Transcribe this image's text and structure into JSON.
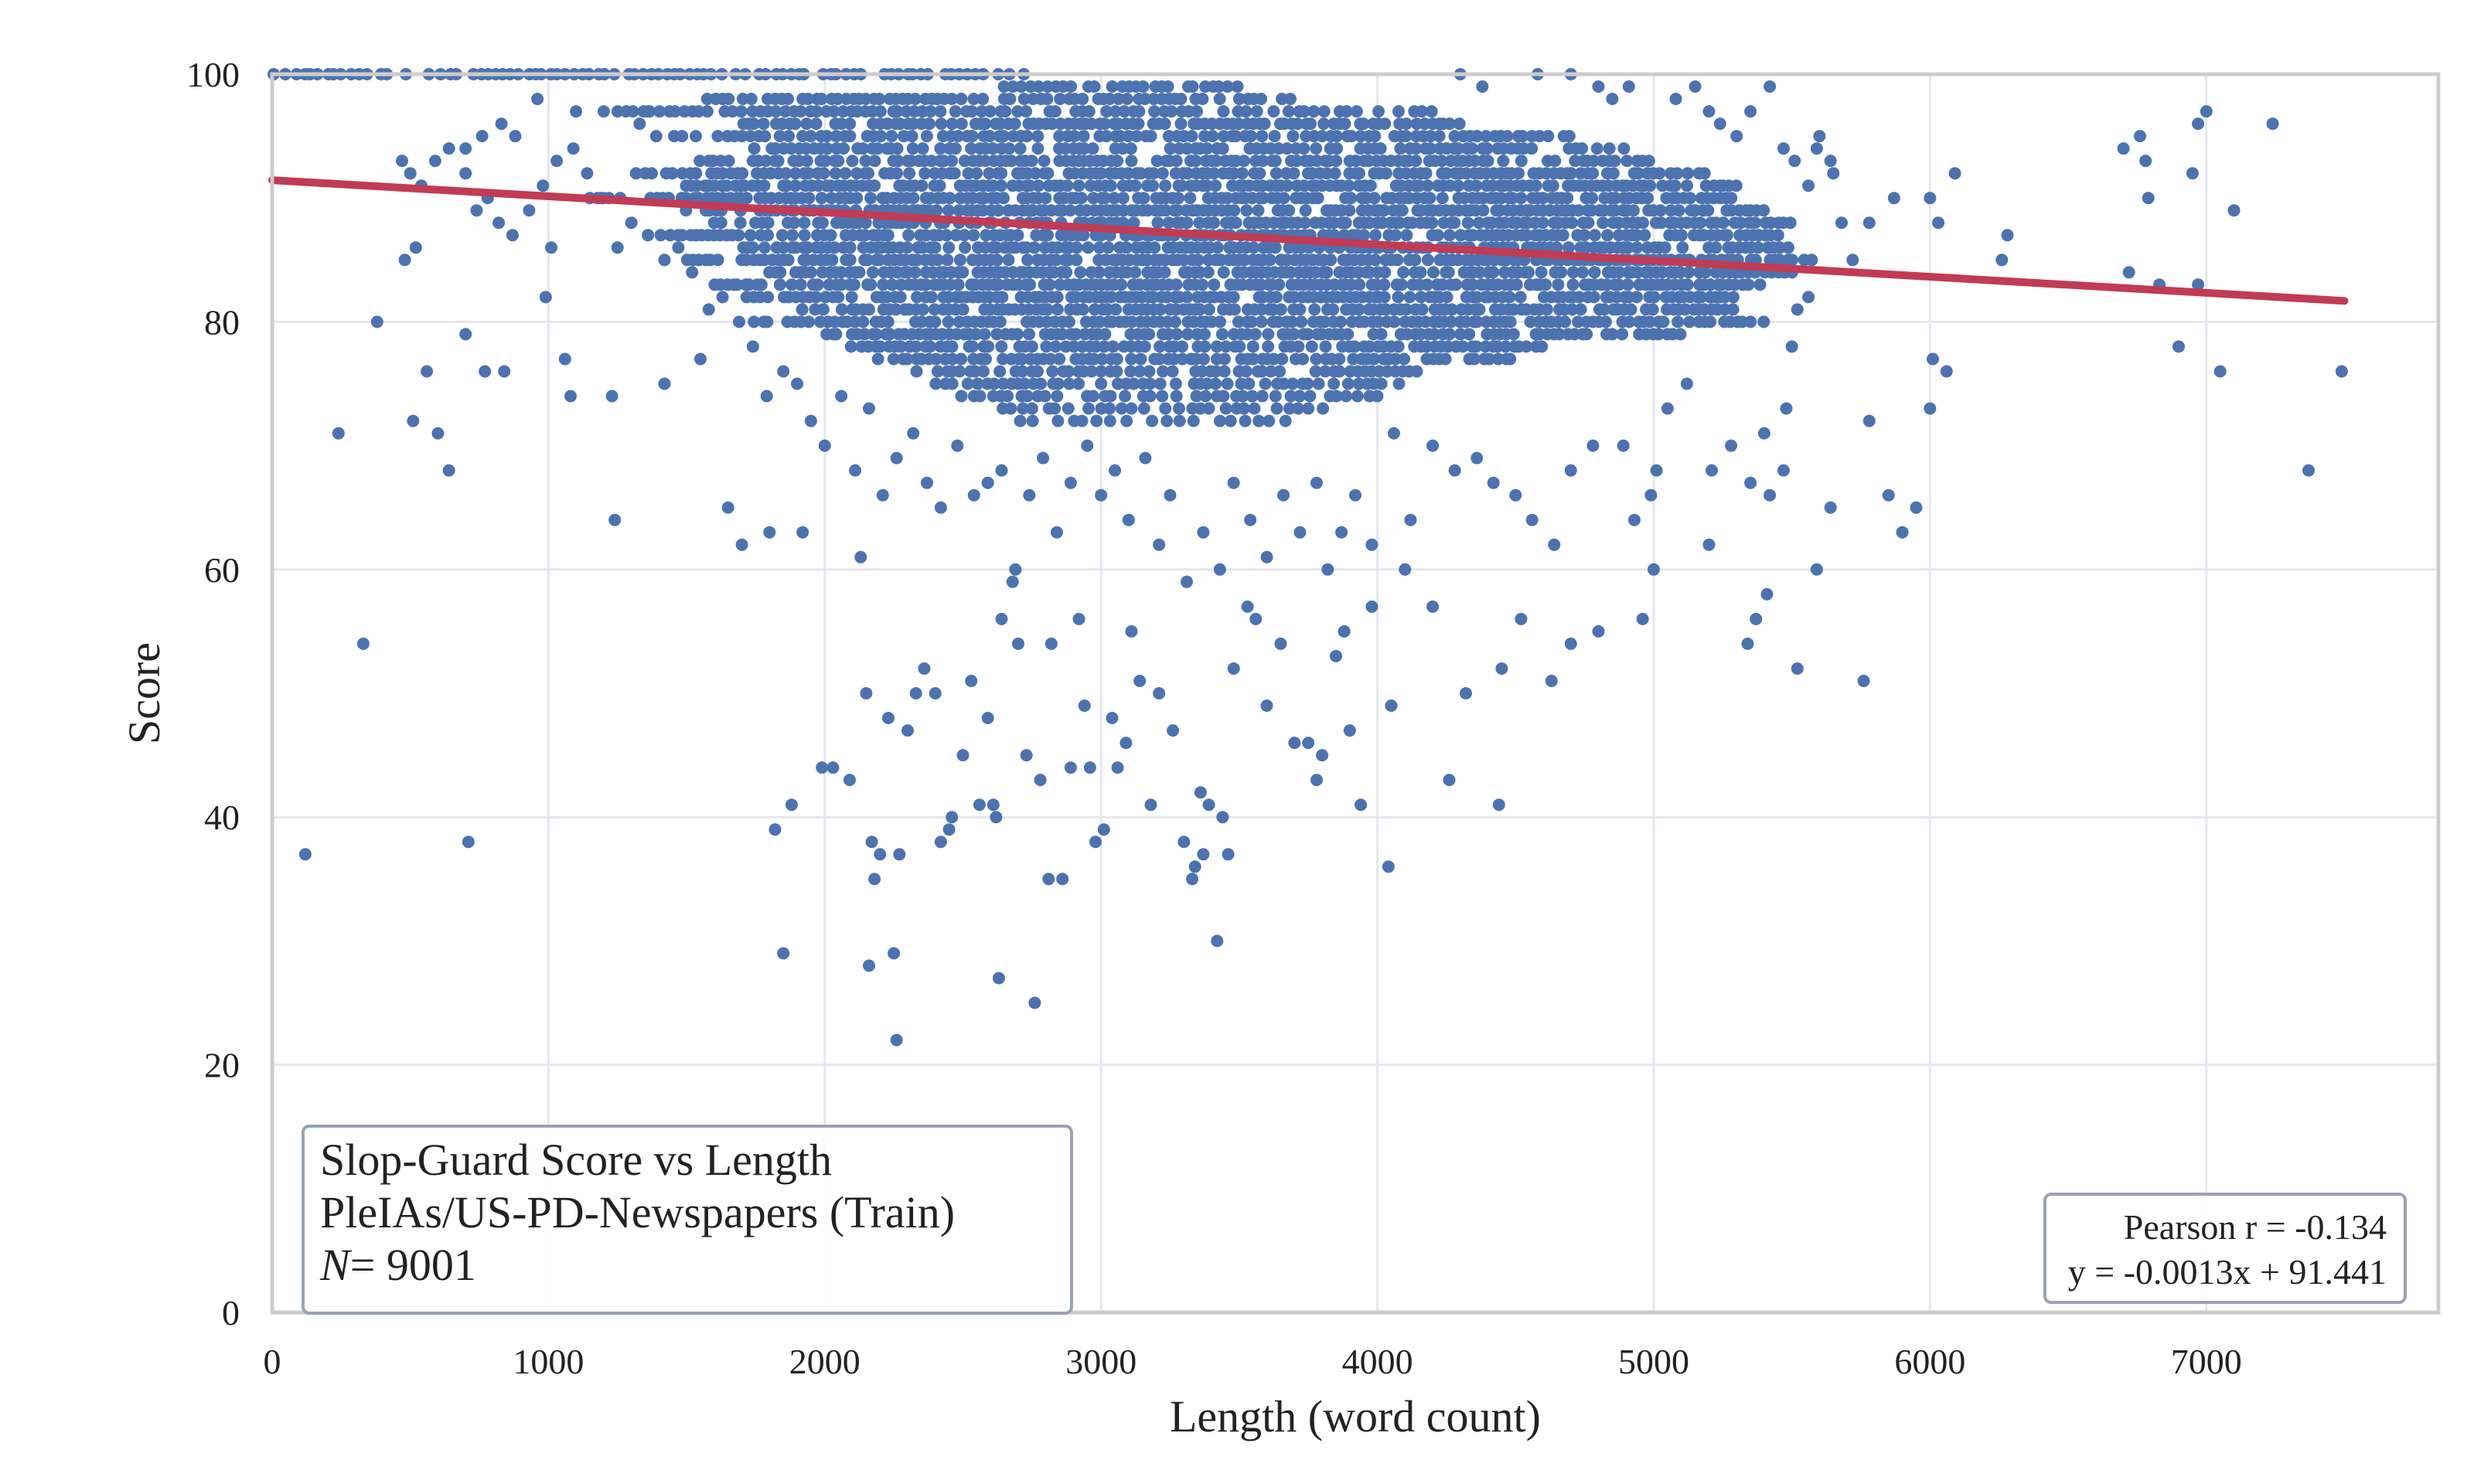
{
  "chart_data": {
    "type": "scatter",
    "title": "Slop-Guard Score vs Length",
    "subtitle": "PleIAs/US-PD-Newspapers (Train)",
    "n_label_var": "N",
    "n_label_value": "= 9001",
    "n": 9001,
    "xlabel": "Length (word count)",
    "ylabel": "Score",
    "xlim": [
      0,
      7840
    ],
    "ylim": [
      0,
      100
    ],
    "xticks": [
      0,
      1000,
      2000,
      3000,
      4000,
      5000,
      6000,
      7000
    ],
    "yticks": [
      0,
      20,
      40,
      60,
      80,
      100
    ],
    "grid": true,
    "colors": {
      "points": "#4c72b0",
      "regression": "#c23b54",
      "grid": "#e5e7ee",
      "spine": "#cccccc",
      "legend_border": "#9aa3b2"
    },
    "regression": {
      "slope": -0.0013,
      "intercept": 91.441,
      "x_start": 0,
      "x_end": 7500
    },
    "stats": {
      "pearson_label": "Pearson r = -0.134",
      "equation_label": "y = -0.0013x + 91.441",
      "pearson_r": -0.134
    },
    "density_bands": [
      {
        "y": 100,
        "x0": 0,
        "x1": 2750,
        "step": 28
      },
      {
        "y": 99,
        "x0": 2650,
        "x1": 3500,
        "step": 30
      },
      {
        "y": 98,
        "x0": 1580,
        "x1": 3700,
        "step": 26
      },
      {
        "y": 97,
        "x0": 1250,
        "x1": 4200,
        "step": 30
      },
      {
        "y": 96,
        "x0": 1700,
        "x1": 4300,
        "step": 24
      },
      {
        "y": 95,
        "x0": 1450,
        "x1": 4700,
        "step": 28
      },
      {
        "y": 94,
        "x0": 1750,
        "x1": 4900,
        "step": 26
      },
      {
        "y": 93,
        "x0": 1550,
        "x1": 5000,
        "step": 24
      },
      {
        "y": 92,
        "x0": 1300,
        "x1": 5200,
        "step": 24
      },
      {
        "y": 91,
        "x0": 1450,
        "x1": 5300,
        "step": 22
      },
      {
        "y": 90,
        "x0": 1150,
        "x1": 5300,
        "step": 22
      },
      {
        "y": 89,
        "x0": 1500,
        "x1": 5400,
        "step": 22
      },
      {
        "y": 88,
        "x0": 1600,
        "x1": 5500,
        "step": 22
      },
      {
        "y": 87,
        "x0": 1400,
        "x1": 5500,
        "step": 22
      },
      {
        "y": 86,
        "x0": 1700,
        "x1": 5500,
        "step": 22
      },
      {
        "y": 85,
        "x0": 1500,
        "x1": 5600,
        "step": 22
      },
      {
        "y": 84,
        "x0": 1800,
        "x1": 5500,
        "step": 22
      },
      {
        "y": 83,
        "x0": 1600,
        "x1": 5400,
        "step": 22
      },
      {
        "y": 82,
        "x0": 1700,
        "x1": 5300,
        "step": 22
      },
      {
        "y": 81,
        "x0": 1900,
        "x1": 5300,
        "step": 24
      },
      {
        "y": 80,
        "x0": 1750,
        "x1": 5400,
        "step": 24
      },
      {
        "y": 79,
        "x0": 2000,
        "x1": 5100,
        "step": 24
      },
      {
        "y": 78,
        "x0": 2100,
        "x1": 4600,
        "step": 26
      },
      {
        "y": 77,
        "x0": 2200,
        "x1": 4500,
        "step": 26
      },
      {
        "y": 76,
        "x0": 2300,
        "x1": 4200,
        "step": 28
      },
      {
        "y": 75,
        "x0": 2400,
        "x1": 4100,
        "step": 30
      },
      {
        "y": 74,
        "x0": 2500,
        "x1": 4000,
        "step": 34
      },
      {
        "y": 73,
        "x0": 2600,
        "x1": 3800,
        "step": 40
      },
      {
        "y": 72,
        "x0": 2700,
        "x1": 3700,
        "step": 48
      }
    ],
    "sparse_points": [
      [
        120,
        37
      ],
      [
        710,
        38
      ],
      [
        330,
        54
      ],
      [
        240,
        71
      ],
      [
        380,
        80
      ],
      [
        510,
        72
      ],
      [
        600,
        71
      ],
      [
        640,
        68
      ],
      [
        560,
        76
      ],
      [
        700,
        79
      ],
      [
        480,
        85
      ],
      [
        520,
        86
      ],
      [
        770,
        76
      ],
      [
        840,
        76
      ],
      [
        990,
        82
      ],
      [
        1010,
        86
      ],
      [
        1060,
        77
      ],
      [
        1080,
        74
      ],
      [
        1240,
        64
      ],
      [
        1230,
        74
      ],
      [
        1420,
        75
      ],
      [
        1550,
        77
      ],
      [
        1650,
        65
      ],
      [
        1700,
        62
      ],
      [
        1800,
        63
      ],
      [
        1820,
        39
      ],
      [
        1850,
        29
      ],
      [
        1880,
        41
      ],
      [
        1920,
        63
      ],
      [
        1990,
        44
      ],
      [
        2030,
        44
      ],
      [
        2090,
        43
      ],
      [
        2130,
        61
      ],
      [
        2150,
        50
      ],
      [
        2160,
        28
      ],
      [
        2170,
        38
      ],
      [
        2180,
        35
      ],
      [
        2200,
        37
      ],
      [
        2230,
        48
      ],
      [
        2250,
        29
      ],
      [
        2260,
        22
      ],
      [
        2270,
        37
      ],
      [
        2300,
        47
      ],
      [
        2330,
        50
      ],
      [
        2360,
        52
      ],
      [
        2400,
        50
      ],
      [
        2420,
        38
      ],
      [
        2450,
        39
      ],
      [
        2460,
        40
      ],
      [
        2500,
        45
      ],
      [
        2530,
        51
      ],
      [
        2560,
        41
      ],
      [
        2590,
        48
      ],
      [
        2610,
        41
      ],
      [
        2620,
        40
      ],
      [
        2630,
        27
      ],
      [
        2640,
        56
      ],
      [
        2680,
        59
      ],
      [
        2700,
        54
      ],
      [
        2730,
        45
      ],
      [
        2760,
        25
      ],
      [
        2780,
        43
      ],
      [
        2810,
        35
      ],
      [
        2820,
        54
      ],
      [
        2860,
        35
      ],
      [
        2890,
        44
      ],
      [
        2920,
        56
      ],
      [
        2940,
        49
      ],
      [
        2960,
        44
      ],
      [
        2980,
        38
      ],
      [
        3010,
        39
      ],
      [
        3040,
        48
      ],
      [
        3060,
        44
      ],
      [
        3090,
        46
      ],
      [
        3110,
        55
      ],
      [
        3140,
        51
      ],
      [
        3180,
        41
      ],
      [
        3210,
        50
      ],
      [
        3260,
        47
      ],
      [
        3300,
        38
      ],
      [
        3330,
        35
      ],
      [
        3340,
        36
      ],
      [
        3360,
        42
      ],
      [
        3370,
        37
      ],
      [
        3390,
        41
      ],
      [
        3420,
        30
      ],
      [
        3440,
        40
      ],
      [
        3460,
        37
      ],
      [
        3480,
        52
      ],
      [
        3530,
        57
      ],
      [
        3560,
        56
      ],
      [
        3600,
        49
      ],
      [
        3650,
        54
      ],
      [
        3700,
        46
      ],
      [
        3750,
        46
      ],
      [
        3780,
        43
      ],
      [
        3800,
        45
      ],
      [
        3850,
        53
      ],
      [
        3880,
        55
      ],
      [
        3900,
        47
      ],
      [
        3940,
        41
      ],
      [
        3980,
        57
      ],
      [
        4040,
        36
      ],
      [
        4050,
        49
      ],
      [
        4100,
        60
      ],
      [
        4200,
        57
      ],
      [
        4260,
        43
      ],
      [
        4320,
        50
      ],
      [
        4440,
        41
      ],
      [
        4450,
        52
      ],
      [
        4520,
        56
      ],
      [
        4630,
        51
      ],
      [
        4700,
        54
      ],
      [
        4800,
        55
      ],
      [
        4960,
        56
      ],
      [
        5000,
        60
      ],
      [
        5200,
        62
      ],
      [
        5340,
        54
      ],
      [
        5370,
        56
      ],
      [
        5410,
        58
      ],
      [
        5520,
        52
      ],
      [
        5590,
        60
      ],
      [
        5640,
        65
      ],
      [
        5760,
        51
      ],
      [
        5780,
        72
      ],
      [
        5850,
        66
      ],
      [
        5900,
        63
      ],
      [
        5950,
        65
      ],
      [
        6000,
        73
      ],
      [
        6010,
        77
      ],
      [
        6060,
        76
      ],
      [
        6000,
        90
      ],
      [
        6030,
        88
      ],
      [
        6090,
        92
      ],
      [
        6260,
        85
      ],
      [
        6280,
        87
      ],
      [
        6700,
        94
      ],
      [
        6720,
        84
      ],
      [
        6760,
        95
      ],
      [
        6780,
        93
      ],
      [
        6790,
        90
      ],
      [
        6830,
        83
      ],
      [
        6900,
        78
      ],
      [
        6950,
        92
      ],
      [
        6970,
        96
      ],
      [
        7000,
        97
      ],
      [
        6970,
        83
      ],
      [
        7050,
        76
      ],
      [
        7100,
        89
      ],
      [
        7240,
        96
      ],
      [
        7370,
        68
      ],
      [
        7490,
        76
      ],
      [
        5870,
        90
      ],
      [
        5780,
        88
      ],
      [
        5720,
        85
      ],
      [
        5680,
        88
      ],
      [
        5650,
        92
      ],
      [
        5590,
        94
      ],
      [
        5560,
        91
      ],
      [
        5560,
        82
      ],
      [
        5520,
        81
      ],
      [
        5500,
        78
      ],
      [
        5480,
        73
      ],
      [
        5470,
        68
      ],
      [
        5420,
        66
      ],
      [
        5400,
        71
      ],
      [
        5350,
        67
      ],
      [
        5280,
        70
      ],
      [
        5210,
        68
      ],
      [
        5120,
        75
      ],
      [
        5050,
        73
      ],
      [
        5010,
        68
      ],
      [
        4990,
        66
      ],
      [
        4930,
        64
      ],
      [
        4890,
        70
      ],
      [
        4780,
        70
      ],
      [
        4700,
        68
      ],
      [
        4640,
        62
      ],
      [
        4560,
        64
      ],
      [
        4500,
        66
      ],
      [
        4420,
        67
      ],
      [
        4360,
        69
      ],
      [
        4280,
        68
      ],
      [
        4200,
        70
      ],
      [
        4120,
        64
      ],
      [
        4060,
        71
      ],
      [
        3980,
        62
      ],
      [
        3920,
        66
      ],
      [
        3870,
        63
      ],
      [
        3820,
        60
      ],
      [
        3780,
        67
      ],
      [
        3720,
        63
      ],
      [
        3660,
        66
      ],
      [
        3600,
        61
      ],
      [
        3540,
        64
      ],
      [
        3480,
        67
      ],
      [
        3430,
        60
      ],
      [
        3370,
        63
      ],
      [
        3310,
        59
      ],
      [
        3250,
        66
      ],
      [
        3210,
        62
      ],
      [
        3160,
        69
      ],
      [
        3100,
        64
      ],
      [
        3050,
        68
      ],
      [
        3000,
        66
      ],
      [
        2950,
        70
      ],
      [
        2890,
        67
      ],
      [
        2840,
        63
      ],
      [
        2790,
        69
      ],
      [
        2740,
        66
      ],
      [
        2690,
        60
      ],
      [
        2640,
        68
      ],
      [
        2590,
        67
      ],
      [
        2540,
        66
      ],
      [
        2480,
        70
      ],
      [
        2420,
        65
      ],
      [
        2370,
        67
      ],
      [
        2320,
        71
      ],
      [
        2260,
        69
      ],
      [
        2210,
        66
      ],
      [
        2160,
        73
      ],
      [
        2110,
        68
      ],
      [
        2060,
        74
      ],
      [
        2000,
        70
      ],
      [
        1950,
        72
      ],
      [
        1900,
        75
      ],
      [
        1850,
        76
      ],
      [
        1790,
        74
      ],
      [
        1740,
        78
      ],
      [
        1690,
        80
      ],
      [
        1630,
        82
      ],
      [
        1580,
        81
      ],
      [
        1520,
        84
      ],
      [
        1470,
        86
      ],
      [
        1420,
        85
      ],
      [
        1360,
        87
      ],
      [
        1300,
        88
      ],
      [
        1250,
        86
      ],
      [
        1190,
        90
      ],
      [
        1140,
        92
      ],
      [
        1090,
        94
      ],
      [
        1030,
        93
      ],
      [
        980,
        91
      ],
      [
        930,
        89
      ],
      [
        870,
        87
      ],
      [
        820,
        88
      ],
      [
        780,
        90
      ],
      [
        740,
        89
      ],
      [
        700,
        92
      ],
      [
        640,
        94
      ],
      [
        590,
        93
      ],
      [
        540,
        91
      ],
      [
        500,
        92
      ],
      [
        470,
        93
      ],
      [
        880,
        95
      ],
      [
        830,
        96
      ],
      [
        760,
        95
      ],
      [
        700,
        94
      ],
      [
        960,
        98
      ],
      [
        1100,
        97
      ],
      [
        1200,
        97
      ],
      [
        1330,
        96
      ],
      [
        1360,
        97
      ],
      [
        1390,
        95
      ],
      [
        4300,
        100
      ],
      [
        4380,
        99
      ],
      [
        4580,
        100
      ],
      [
        4700,
        100
      ],
      [
        4800,
        99
      ],
      [
        4850,
        98
      ],
      [
        4910,
        99
      ],
      [
        5080,
        98
      ],
      [
        5150,
        99
      ],
      [
        5200,
        97
      ],
      [
        5240,
        96
      ],
      [
        5300,
        95
      ],
      [
        5350,
        97
      ],
      [
        5420,
        99
      ],
      [
        5470,
        94
      ],
      [
        5510,
        93
      ],
      [
        5600,
        95
      ],
      [
        5640,
        93
      ]
    ]
  }
}
